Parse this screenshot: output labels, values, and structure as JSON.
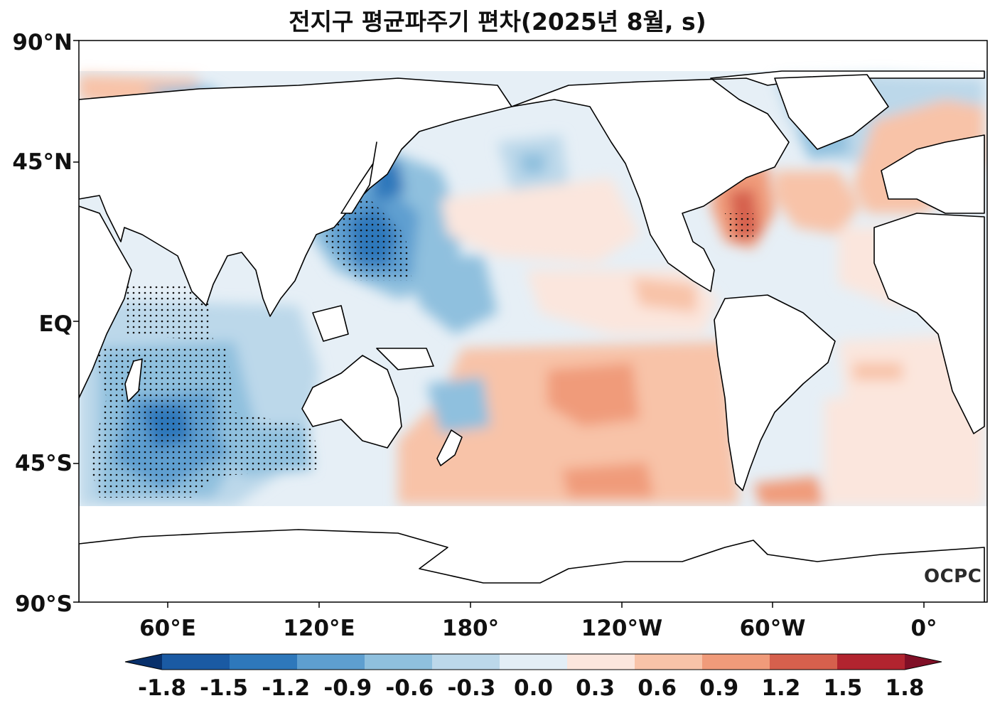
{
  "title": "전지구 평균파주기 편차(2025년 8월, s)",
  "logo": "OCPC",
  "lat_labels": [
    "90°N",
    "45°N",
    "EQ",
    "45°S",
    "90°S"
  ],
  "lon_labels": [
    "60°E",
    "120°E",
    "180°",
    "120°W",
    "60°W",
    "0°"
  ],
  "colorbar": {
    "ticks": [
      "-1.8",
      "-1.5",
      "-1.2",
      "-0.9",
      "-0.6",
      "-0.3",
      "0.0",
      "0.3",
      "0.6",
      "0.9",
      "1.2",
      "1.5",
      "1.8"
    ],
    "colors": [
      "#08306b",
      "#1a5aa3",
      "#2e78bb",
      "#5e9fd0",
      "#8fc0de",
      "#bcd8ea",
      "#e3eef6",
      "#fbe6dd",
      "#f8c3a8",
      "#f09b7a",
      "#d6604d",
      "#b2242f",
      "#800f26"
    ],
    "extend": "both"
  },
  "colors": {
    "ocean_neutral": "#e9f1f7",
    "land": "#ffffff",
    "coast": "#000000",
    "stipple": "#111111"
  }
}
